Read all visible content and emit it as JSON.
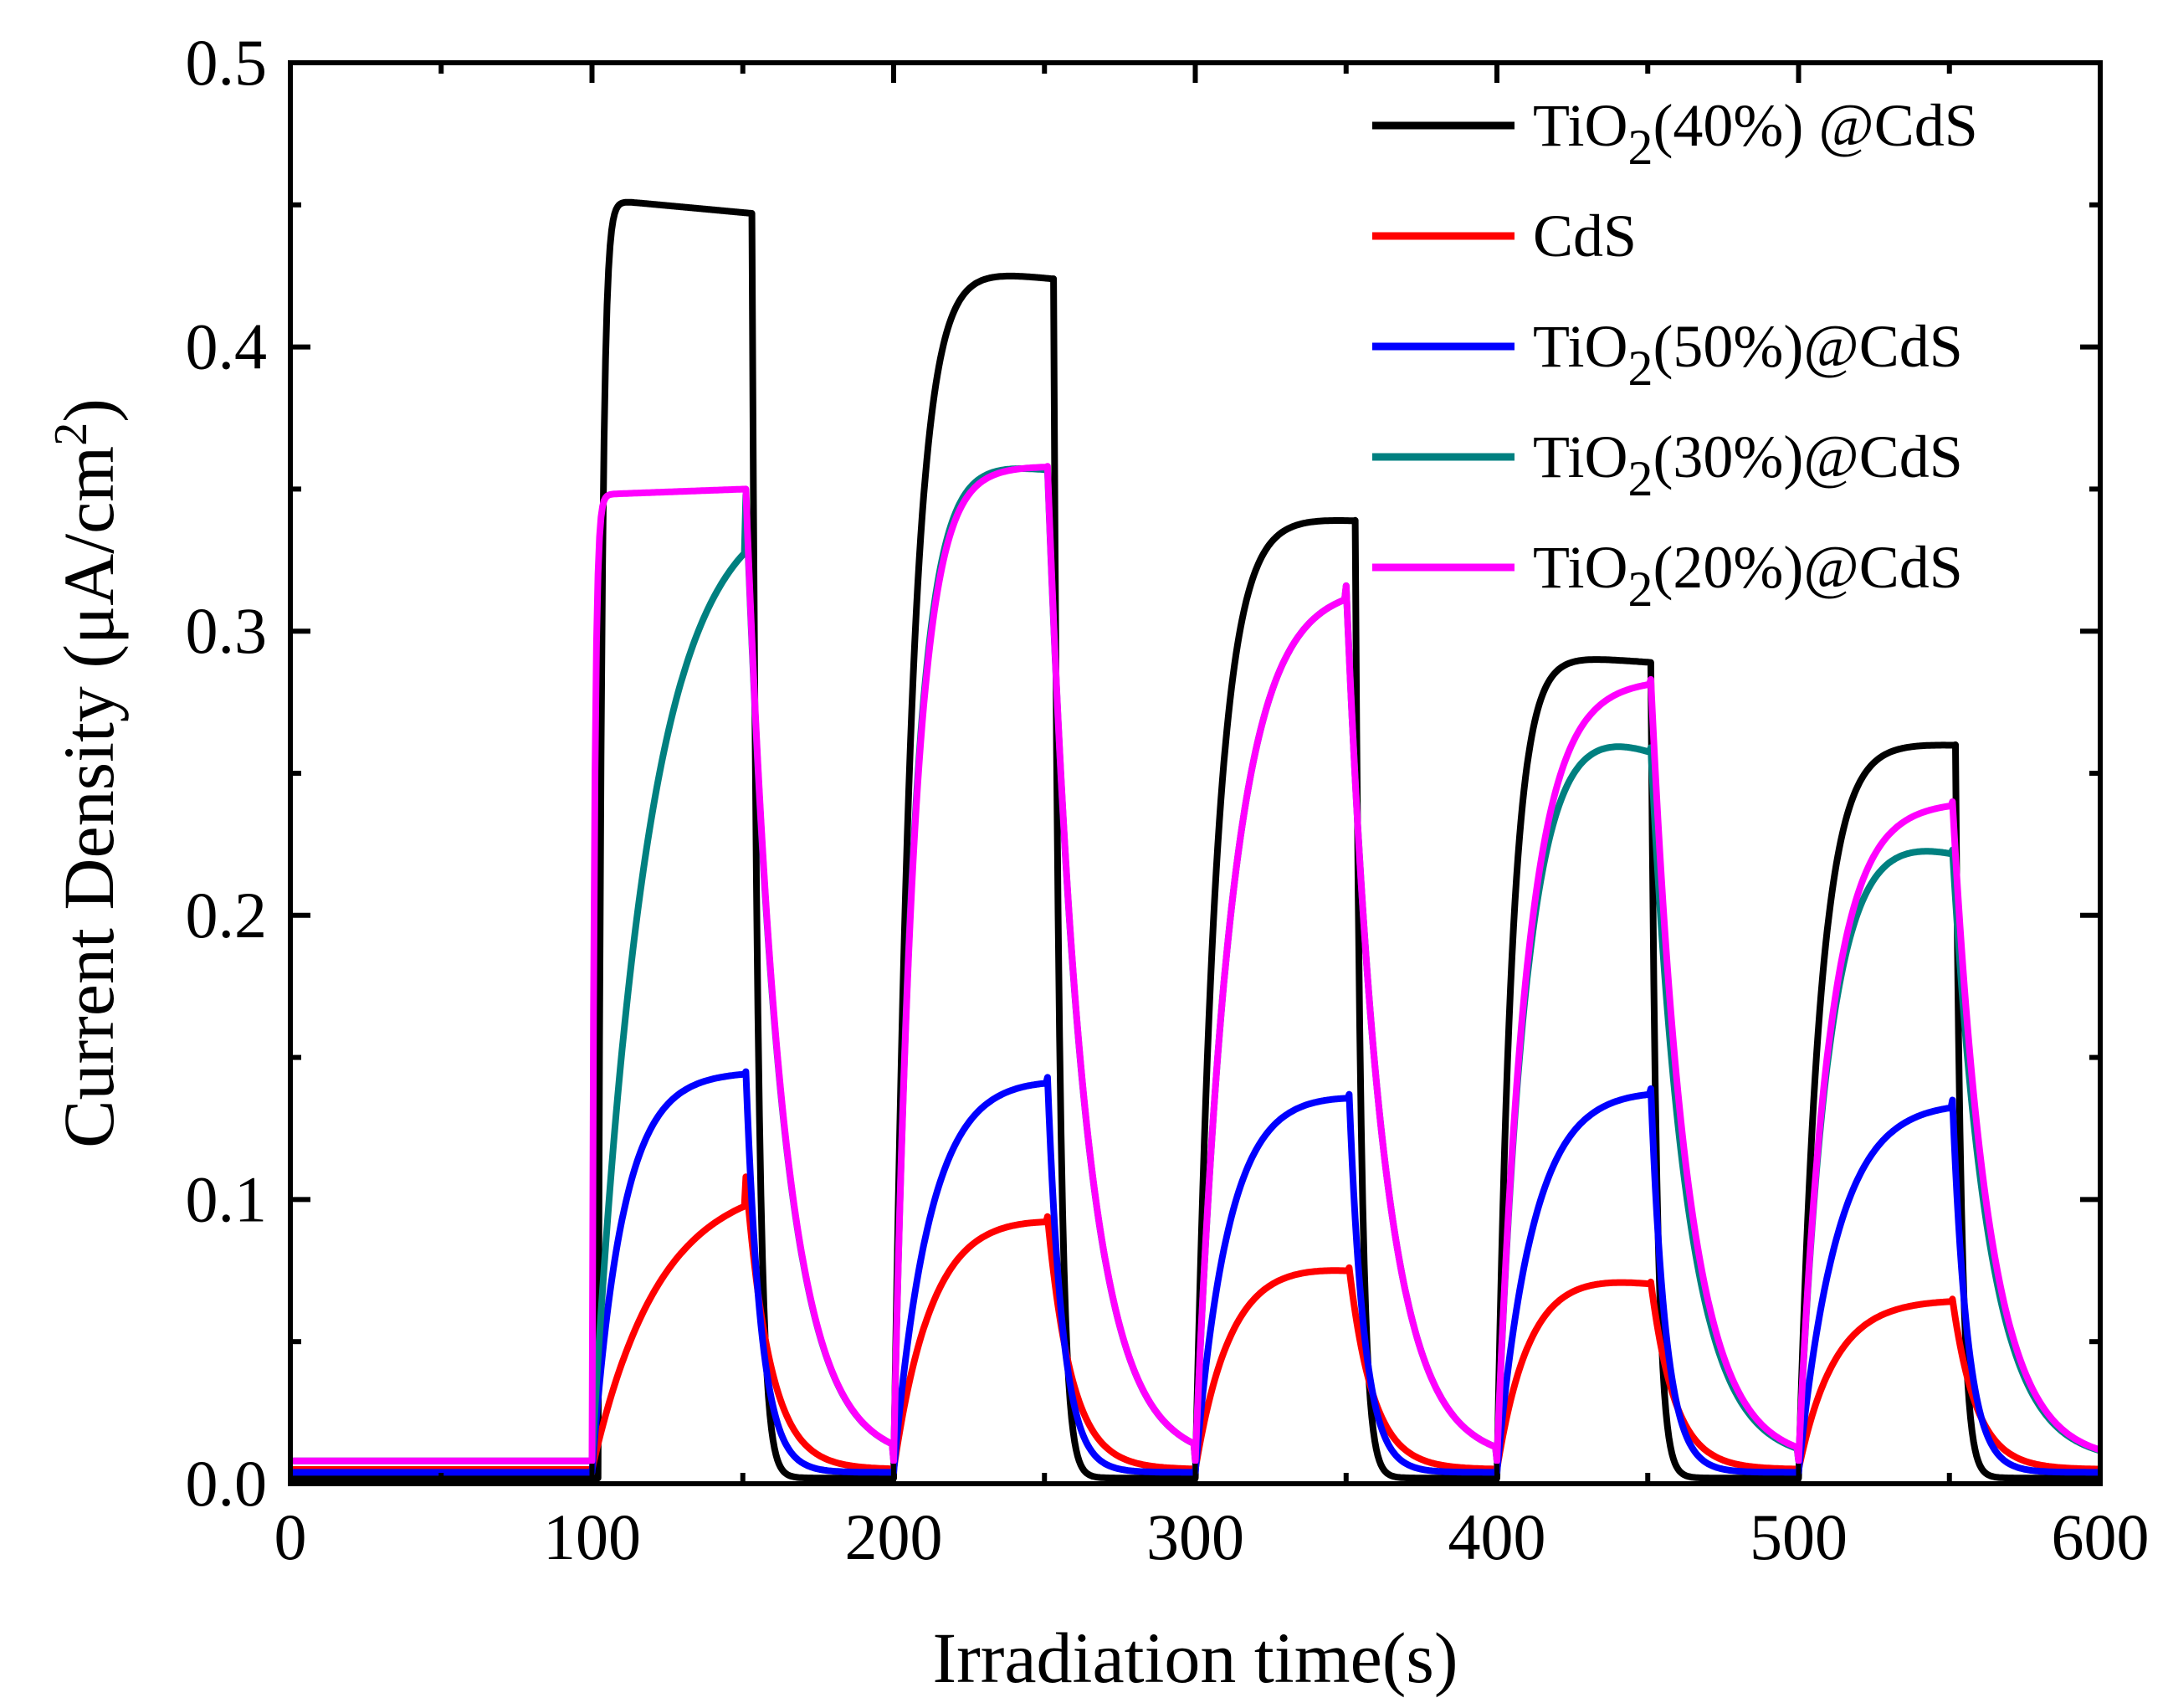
{
  "chart_data": {
    "type": "line",
    "title": "",
    "xlabel": "Irradiation time(s)",
    "ylabel_parts": [
      "Current Density (μA/cm",
      "2",
      ")"
    ],
    "xlim": [
      0,
      600
    ],
    "ylim": [
      0,
      0.5
    ],
    "xticks": [
      0,
      100,
      200,
      300,
      400,
      500,
      600
    ],
    "xtick_labels": [
      "0",
      "100",
      "200",
      "300",
      "400",
      "500",
      "600"
    ],
    "yticks": [
      0,
      0.1,
      0.2,
      0.3,
      0.4,
      0.5
    ],
    "ytick_labels": [
      "0.0",
      "0.1",
      "0.2",
      "0.3",
      "0.4",
      "0.5"
    ],
    "grid": false,
    "legend_position": "top-right",
    "light_on_times": [
      100,
      200,
      300,
      400,
      500
    ],
    "light_off_times": [
      150,
      250,
      350,
      450,
      550
    ],
    "series": [
      {
        "name": "TiO2(40%) @CdS",
        "legend": {
          "pre": "TiO",
          "sub": "2",
          "post": "(40%) @CdS"
        },
        "color": "#000000",
        "base": 0.002,
        "cycles": [
          {
            "on": 102,
            "off": 153,
            "peak": 0.452,
            "tau_rise": 1.2,
            "droop": 0.005,
            "tau_fall": 2
          },
          {
            "on": 200,
            "off": 253,
            "peak": 0.43,
            "tau_rise": 6,
            "droop": 0.006,
            "tau_fall": 2
          },
          {
            "on": 300,
            "off": 353,
            "peak": 0.342,
            "tau_rise": 7,
            "droop": 0.003,
            "tau_fall": 2
          },
          {
            "on": 400,
            "off": 451,
            "peak": 0.293,
            "tau_rise": 5,
            "droop": 0.004,
            "tau_fall": 2
          },
          {
            "on": 500,
            "off": 552,
            "peak": 0.262,
            "tau_rise": 7,
            "droop": 0.002,
            "tau_fall": 2
          }
        ]
      },
      {
        "name": "CdS",
        "legend": {
          "pre": "CdS",
          "sub": "",
          "post": ""
        },
        "color": "#ff0000",
        "base": 0.005,
        "cycles": [
          {
            "on": 100,
            "off": 151,
            "peak": 0.108,
            "tau_rise": 22,
            "droop": 0.0,
            "tau_fall": 8
          },
          {
            "on": 200,
            "off": 251,
            "peak": 0.1,
            "tau_rise": 13,
            "droop": 0.006,
            "tau_fall": 8
          },
          {
            "on": 300,
            "off": 351,
            "peak": 0.083,
            "tau_rise": 12,
            "droop": 0.007,
            "tau_fall": 8
          },
          {
            "on": 400,
            "off": 451,
            "peak": 0.079,
            "tau_rise": 11,
            "droop": 0.008,
            "tau_fall": 8
          },
          {
            "on": 500,
            "off": 551,
            "peak": 0.066,
            "tau_rise": 12,
            "droop": 0.001,
            "tau_fall": 8
          }
        ]
      },
      {
        "name": "TiO2(50%)@CdS",
        "legend": {
          "pre": "TiO",
          "sub": "2",
          "post": "(50%)@CdS"
        },
        "color": "#0000ff",
        "base": 0.004,
        "cycles": [
          {
            "on": 100,
            "off": 151,
            "peak": 0.145,
            "tau_rise": 10,
            "droop": 0.0,
            "tau_fall": 5
          },
          {
            "on": 200,
            "off": 251,
            "peak": 0.147,
            "tau_rise": 12,
            "droop": 0.004,
            "tau_fall": 5
          },
          {
            "on": 300,
            "off": 351,
            "peak": 0.141,
            "tau_rise": 11,
            "droop": 0.004,
            "tau_fall": 5
          },
          {
            "on": 400,
            "off": 451,
            "peak": 0.142,
            "tau_rise": 12,
            "droop": 0.003,
            "tau_fall": 5
          },
          {
            "on": 500,
            "off": 551,
            "peak": 0.138,
            "tau_rise": 13,
            "droop": 0.003,
            "tau_fall": 5
          }
        ]
      },
      {
        "name": "TiO2(30%)@CdS",
        "legend": {
          "pre": "TiO",
          "sub": "2",
          "post": "(30%)@CdS"
        },
        "color": "#008080",
        "base": 0.008,
        "cycles": [
          {
            "on": 100,
            "off": 151,
            "peak": 0.348,
            "tau_rise": 18,
            "droop": 0.0,
            "tau_fall": 12
          },
          {
            "on": 200,
            "off": 251,
            "peak": 0.363,
            "tau_rise": 7,
            "droop": 0.006,
            "tau_fall": 12
          },
          {
            "on": 300,
            "off": 350,
            "peak": 0.316,
            "tau_rise": 12,
            "droop": 0.0,
            "tau_fall": 12
          },
          {
            "on": 400,
            "off": 451,
            "peak": 0.284,
            "tau_rise": 10,
            "droop": 0.025,
            "tau_fall": 12
          },
          {
            "on": 500,
            "off": 551,
            "peak": 0.24,
            "tau_rise": 10,
            "droop": 0.017,
            "tau_fall": 12
          }
        ]
      },
      {
        "name": "TiO2(20%)@CdS",
        "legend": {
          "pre": "TiO",
          "sub": "2",
          "post": "(20%)@CdS"
        },
        "color": "#ff00ff",
        "base": 0.008,
        "cycles": [
          {
            "on": 100,
            "off": 151,
            "peak": 0.348,
            "tau_rise": 0.8,
            "droop": -0.002,
            "tau_fall": 12
          },
          {
            "on": 200,
            "off": 251,
            "peak": 0.358,
            "tau_rise": 7,
            "droop": 0.0,
            "tau_fall": 12
          },
          {
            "on": 300,
            "off": 350,
            "peak": 0.316,
            "tau_rise": 12,
            "droop": 0.0,
            "tau_fall": 12
          },
          {
            "on": 400,
            "off": 451,
            "peak": 0.283,
            "tau_rise": 10,
            "droop": 0.0,
            "tau_fall": 12
          },
          {
            "on": 500,
            "off": 551,
            "peak": 0.24,
            "tau_rise": 10,
            "droop": 0.0,
            "tau_fall": 12
          }
        ]
      }
    ]
  }
}
